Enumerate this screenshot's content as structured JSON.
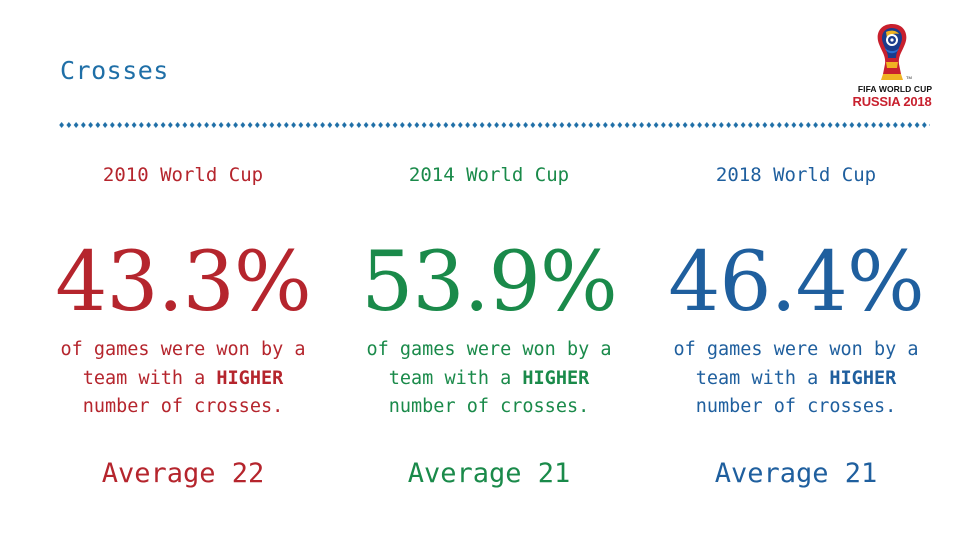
{
  "slide": {
    "title": "Crosses"
  },
  "logo": {
    "line1": "FIFA WORLD CUP",
    "line2": "RUSSIA 2018"
  },
  "colors": {
    "title": "#1f6fa7",
    "divider": "#1f6fa7",
    "red": "#b5252d",
    "green": "#1a8a4a",
    "blue": "#1f5f9e"
  },
  "columns": [
    {
      "heading": "2010 World Cup",
      "percentage": "43.3%",
      "desc_line1": "of games were won by a",
      "desc_line2_pre": "team with a ",
      "desc_line2_bold": "HIGHER",
      "desc_line3": "number of crosses.",
      "average": "Average 22",
      "color": "#b5252d"
    },
    {
      "heading": "2014 World Cup",
      "percentage": "53.9%",
      "desc_line1": "of games were won by a",
      "desc_line2_pre": "team with a ",
      "desc_line2_bold": "HIGHER",
      "desc_line3": "number of crosses.",
      "average": "Average 21",
      "color": "#1a8a4a"
    },
    {
      "heading": "2018 World Cup",
      "percentage": "46.4%",
      "desc_line1": "of games were won by a",
      "desc_line2_pre": "team with a ",
      "desc_line2_bold": "HIGHER",
      "desc_line3": "number of crosses.",
      "average": "Average 21",
      "color": "#1f5f9e"
    }
  ]
}
